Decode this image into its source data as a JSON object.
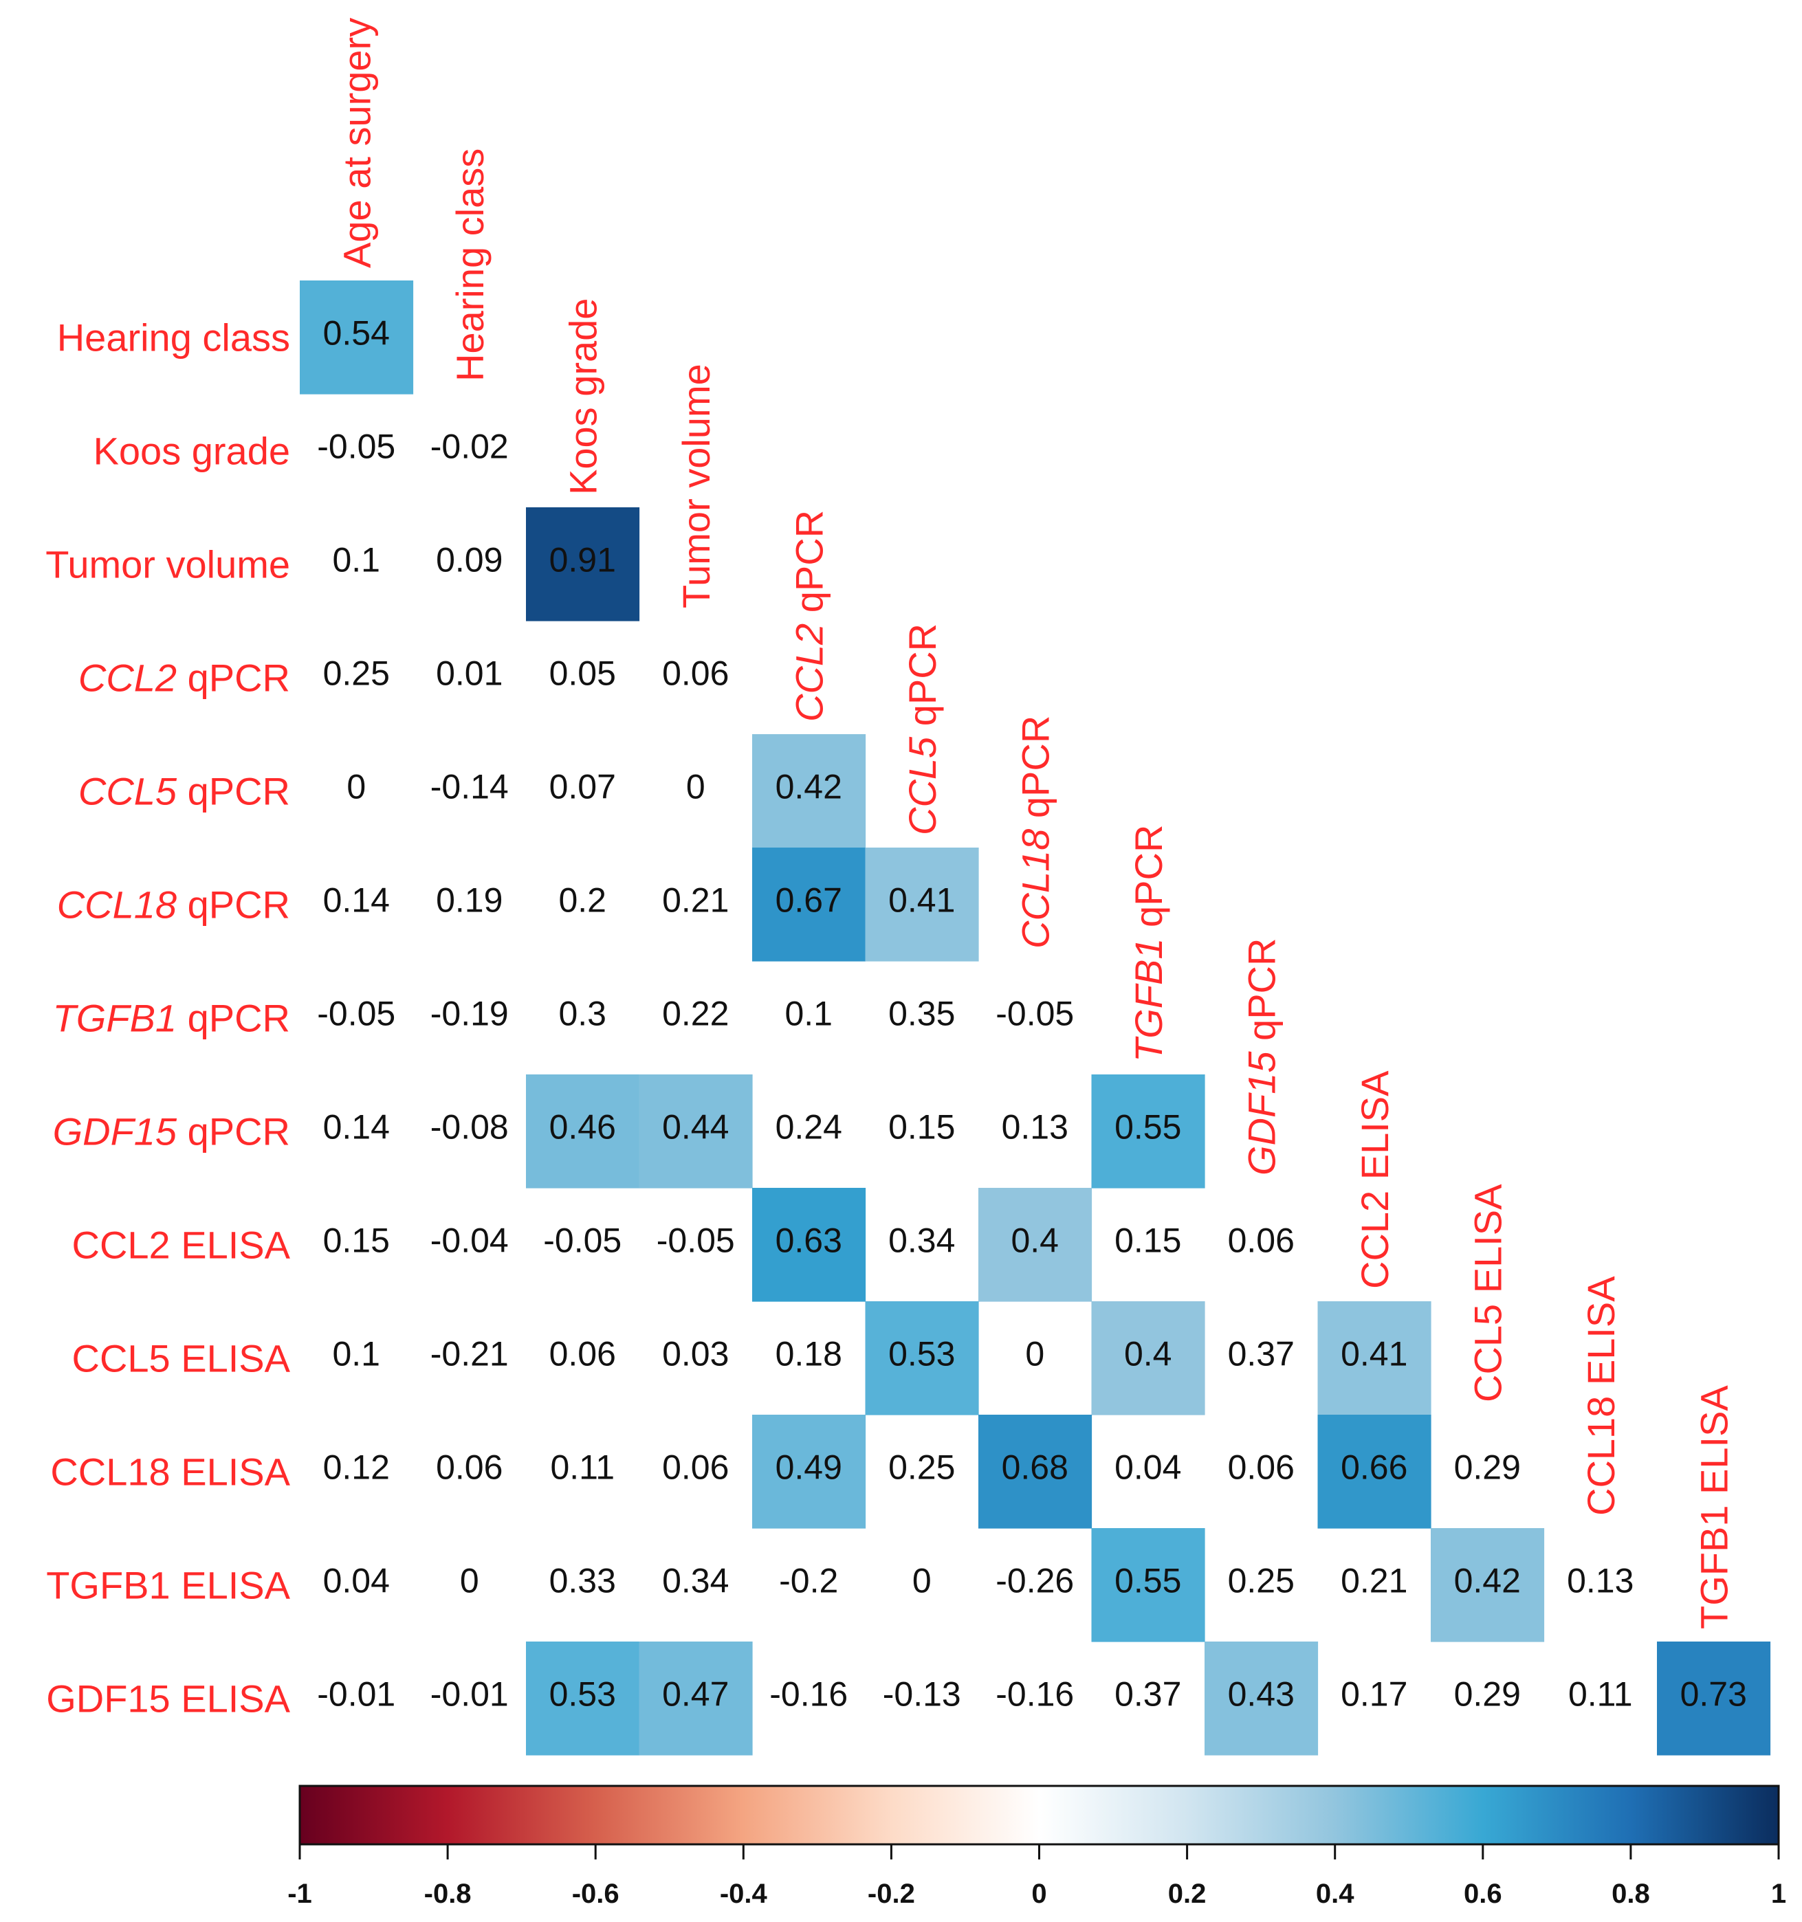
{
  "chart_data": {
    "type": "heatmap",
    "variables": [
      {
        "name": "Age at surgery",
        "gene": "",
        "rest": "Age at surgery"
      },
      {
        "name": "Hearing class",
        "gene": "",
        "rest": "Hearing class"
      },
      {
        "name": "Koos grade",
        "gene": "",
        "rest": "Koos grade"
      },
      {
        "name": "Tumor volume",
        "gene": "",
        "rest": "Tumor volume"
      },
      {
        "name": "CCL2 qPCR",
        "gene": "CCL2",
        "rest": " qPCR"
      },
      {
        "name": "CCL5 qPCR",
        "gene": "CCL5",
        "rest": " qPCR"
      },
      {
        "name": "CCL18 qPCR",
        "gene": "CCL18",
        "rest": " qPCR"
      },
      {
        "name": "TGFB1 qPCR",
        "gene": "TGFB1",
        "rest": " qPCR"
      },
      {
        "name": "GDF15 qPCR",
        "gene": "GDF15",
        "rest": " qPCR"
      },
      {
        "name": "CCL2 ELISA",
        "gene": "",
        "rest": "CCL2 ELISA"
      },
      {
        "name": "CCL5 ELISA",
        "gene": "",
        "rest": "CCL5 ELISA"
      },
      {
        "name": "CCL18 ELISA",
        "gene": "",
        "rest": "CCL18 ELISA"
      },
      {
        "name": "TGFB1 ELISA",
        "gene": "",
        "rest": "TGFB1 ELISA"
      },
      {
        "name": "GDF15 ELISA",
        "gene": "",
        "rest": "GDF15 ELISA"
      }
    ],
    "lower_triangle": [
      [
        0.54
      ],
      [
        -0.05,
        -0.02
      ],
      [
        0.1,
        0.09,
        0.91
      ],
      [
        0.25,
        0.01,
        0.05,
        0.06
      ],
      [
        0,
        -0.14,
        0.07,
        0,
        0.42
      ],
      [
        0.14,
        0.19,
        0.2,
        0.21,
        0.67,
        0.41
      ],
      [
        -0.05,
        -0.19,
        0.3,
        0.22,
        0.1,
        0.35,
        -0.05
      ],
      [
        0.14,
        -0.08,
        0.46,
        0.44,
        0.24,
        0.15,
        0.13,
        0.55
      ],
      [
        0.15,
        -0.04,
        -0.05,
        -0.05,
        0.63,
        0.34,
        0.4,
        0.15,
        0.06
      ],
      [
        0.1,
        -0.21,
        0.06,
        0.03,
        0.18,
        0.53,
        0,
        0.4,
        0.37,
        0.41
      ],
      [
        0.12,
        0.06,
        0.11,
        0.06,
        0.49,
        0.25,
        0.68,
        0.04,
        0.06,
        0.66,
        0.29
      ],
      [
        0.04,
        0,
        0.33,
        0.34,
        -0.2,
        0,
        -0.26,
        0.55,
        0.25,
        0.21,
        0.42,
        0.13
      ],
      [
        -0.01,
        -0.01,
        0.53,
        0.47,
        -0.16,
        -0.13,
        -0.16,
        0.37,
        0.43,
        0.17,
        0.29,
        0.11,
        0.73
      ]
    ],
    "significant": [
      [
        true
      ],
      [
        false,
        false
      ],
      [
        false,
        false,
        true
      ],
      [
        false,
        false,
        false,
        false
      ],
      [
        false,
        false,
        false,
        false,
        true
      ],
      [
        false,
        false,
        false,
        false,
        true,
        true
      ],
      [
        false,
        false,
        false,
        false,
        false,
        false,
        false
      ],
      [
        false,
        false,
        true,
        true,
        false,
        false,
        false,
        true
      ],
      [
        false,
        false,
        false,
        false,
        true,
        false,
        true,
        false,
        false
      ],
      [
        false,
        false,
        false,
        false,
        false,
        true,
        false,
        true,
        false,
        true
      ],
      [
        false,
        false,
        false,
        false,
        true,
        false,
        true,
        false,
        false,
        true,
        false
      ],
      [
        false,
        false,
        false,
        false,
        false,
        false,
        false,
        true,
        false,
        false,
        true,
        false
      ],
      [
        false,
        false,
        true,
        true,
        false,
        false,
        false,
        false,
        true,
        false,
        false,
        false,
        true
      ]
    ],
    "colorbar": {
      "range": [
        -1,
        1
      ],
      "ticks": [
        -1,
        -0.8,
        -0.6,
        -0.4,
        -0.2,
        0,
        0.2,
        0.4,
        0.6,
        0.8,
        1
      ],
      "colors": [
        "#67001f",
        "#b2182b",
        "#d6604d",
        "#f4a582",
        "#fddbc7",
        "#ffffff",
        "#d1e5f0",
        "#92c5de",
        "#4393c3",
        "#2166ac",
        "#053061"
      ]
    },
    "label_color": "#ff2a2a"
  }
}
